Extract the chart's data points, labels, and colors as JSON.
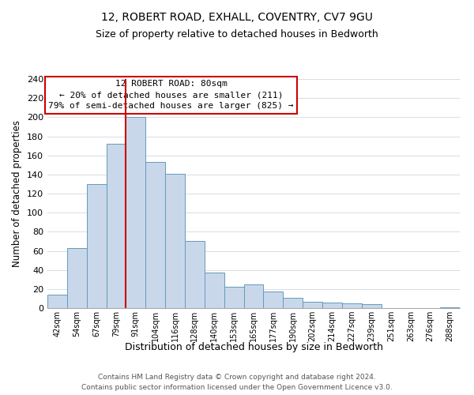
{
  "title1": "12, ROBERT ROAD, EXHALL, COVENTRY, CV7 9GU",
  "title2": "Size of property relative to detached houses in Bedworth",
  "xlabel": "Distribution of detached houses by size in Bedworth",
  "ylabel": "Number of detached properties",
  "bar_labels": [
    "42sqm",
    "54sqm",
    "67sqm",
    "79sqm",
    "91sqm",
    "104sqm",
    "116sqm",
    "128sqm",
    "140sqm",
    "153sqm",
    "165sqm",
    "177sqm",
    "190sqm",
    "202sqm",
    "214sqm",
    "227sqm",
    "239sqm",
    "251sqm",
    "263sqm",
    "276sqm",
    "288sqm"
  ],
  "bar_heights": [
    14,
    63,
    130,
    172,
    200,
    153,
    141,
    70,
    37,
    22,
    25,
    17,
    11,
    7,
    6,
    5,
    4,
    0,
    0,
    0,
    1
  ],
  "bar_color": "#c8d8ea",
  "bar_edge_color": "#6699bb",
  "vline_x_index": 3,
  "vline_color": "#cc0000",
  "annotation_title": "12 ROBERT ROAD: 80sqm",
  "annotation_line1": "← 20% of detached houses are smaller (211)",
  "annotation_line2": "79% of semi-detached houses are larger (825) →",
  "annotation_box_edge": "#cc0000",
  "ylim": [
    0,
    240
  ],
  "yticks": [
    0,
    20,
    40,
    60,
    80,
    100,
    120,
    140,
    160,
    180,
    200,
    220,
    240
  ],
  "footer_line1": "Contains HM Land Registry data © Crown copyright and database right 2024.",
  "footer_line2": "Contains public sector information licensed under the Open Government Licence v3.0.",
  "background_color": "#ffffff",
  "grid_color": "#d0d8e0"
}
